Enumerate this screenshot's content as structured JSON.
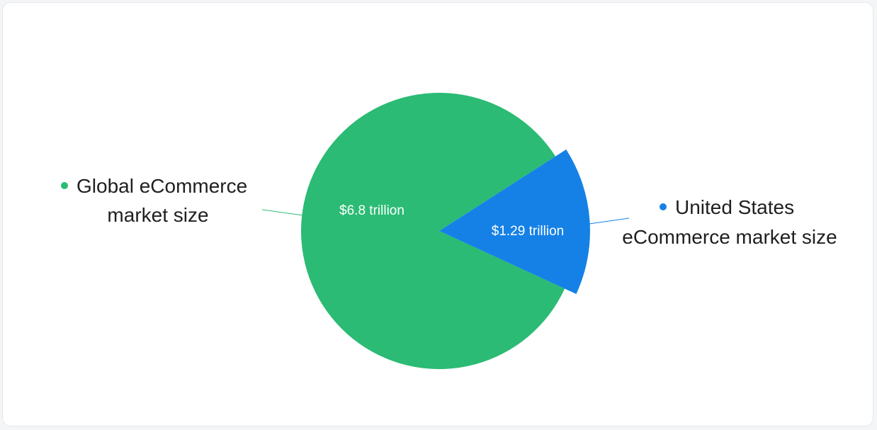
{
  "chart_data": {
    "type": "pie",
    "title": "",
    "series": [
      {
        "name": "Global eCommerce market size",
        "label_lines": [
          "Global eCommerce",
          "market size"
        ],
        "value": 6.8,
        "value_label": "$6.8 trillion",
        "color": "#2bbb74"
      },
      {
        "name": "United States eCommerce market size",
        "label_lines": [
          "United States",
          "eCommerce market size"
        ],
        "value": 1.29,
        "value_label": "$1.29 trillion",
        "color": "#1581e6"
      }
    ]
  }
}
